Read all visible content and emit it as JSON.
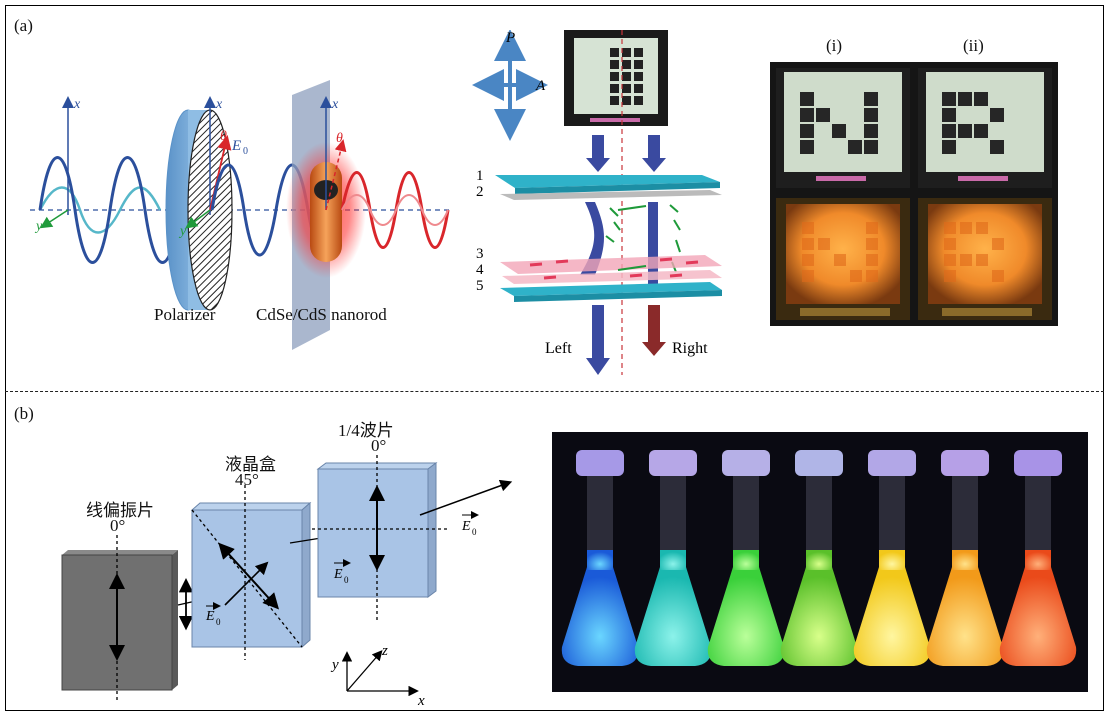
{
  "panel_a": {
    "label": "(a)",
    "optics": {
      "axis_x1": "x",
      "axis_x2": "x",
      "axis_x3": "x",
      "axis_y1": "y",
      "axis_y2": "y",
      "theta1": "θ",
      "theta2": "θ",
      "field": "E",
      "field_sub": "0",
      "polarizer_label": "Polarizer",
      "nanorod_label": "CdSe/CdS nanorod"
    },
    "lcd": {
      "pol_p": "P",
      "pol_a": "A",
      "layer_numbers": [
        "1",
        "2",
        "3",
        "4",
        "5"
      ],
      "left_label": "Left",
      "right_label": "Right"
    },
    "photos": {
      "label_i": "(i)",
      "label_ii": "(ii)"
    }
  },
  "panel_b": {
    "label": "(b)",
    "linear_polarizer": {
      "name": "线偏振片",
      "angle": "0°"
    },
    "lc_cell": {
      "name": "液晶盒",
      "angle": "45°"
    },
    "quarter_wave": {
      "name": "1/4波片",
      "angle": "0°"
    },
    "fields": {
      "e0": "E",
      "e0_sub": "0",
      "e0p": "E",
      "e0p_sub": "0",
      "e0pp": "E",
      "e0pp_sub": "0"
    },
    "axes": {
      "x": "x",
      "y": "y",
      "z": "z"
    }
  },
  "colors": {
    "wave_blue": "#2b4f9c",
    "wave_red": "#d9262b",
    "polarizer": "#7fb2dd",
    "layer_cyan": "#2fb2c9",
    "layer_pink": "#f2a5b8",
    "plate_blue": "#a9c4e6",
    "plate_gray": "#707070"
  }
}
